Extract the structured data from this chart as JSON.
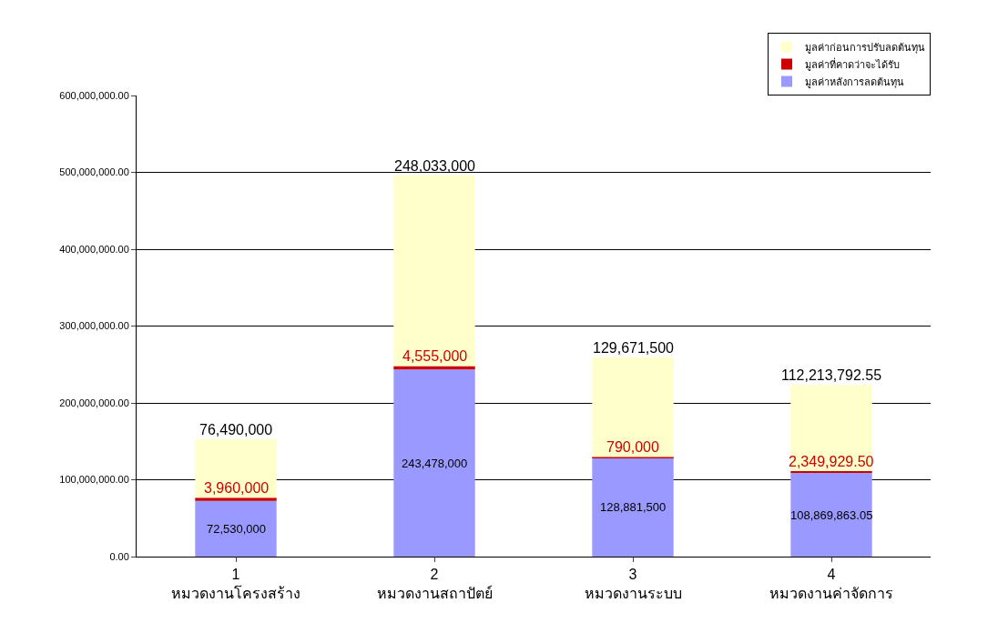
{
  "chart_data": {
    "type": "bar",
    "stacked": true,
    "categories": [
      "1\nหมวดงานโครงสร้าง",
      "2\nหมวดงานสถาปัตย์",
      "3\nหมวดงานระบบ",
      "4\nหมวดงานค่าจัดการ"
    ],
    "series": [
      {
        "name": "มูลค่าหลังการลดต้นทุน",
        "color": "#9999ff",
        "values": [
          72530000,
          243478000,
          128881500,
          108869863.05
        ],
        "value_labels": [
          "72,530,000",
          "243,478,000",
          "128,881,500",
          "108,869,863.05"
        ]
      },
      {
        "name": "มูลค่าที่คาดว่าจะได้รับ",
        "color": "#cc0000",
        "values": [
          3960000,
          4555000,
          790000,
          2349929.5
        ],
        "value_labels": [
          "3,960,000",
          "4,555,000",
          "790,000",
          "2,349,929.50"
        ]
      },
      {
        "name": "มูลค่าก่อนการปรับลดต้นทุน",
        "color": "#ffffcc",
        "values": [
          76490000,
          248033000,
          129671500,
          112213792.55
        ],
        "value_labels": [
          "76,490,000",
          "248,033,000",
          "129,671,500",
          "112,213,792.55"
        ]
      }
    ],
    "ylim": [
      0,
      600000000
    ],
    "yticks": [
      {
        "value": 0,
        "label": "0.00"
      },
      {
        "value": 100000000,
        "label": "100,000,000.00"
      },
      {
        "value": 200000000,
        "label": "200,000,000.00"
      },
      {
        "value": 300000000,
        "label": "300,000,000.00"
      },
      {
        "value": 400000000,
        "label": "400,000,000.00"
      },
      {
        "value": 500000000,
        "label": "500,000,000.00"
      },
      {
        "value": 600000000,
        "label": "600,000,000.00"
      }
    ],
    "grid": "y",
    "legend": "top right"
  }
}
